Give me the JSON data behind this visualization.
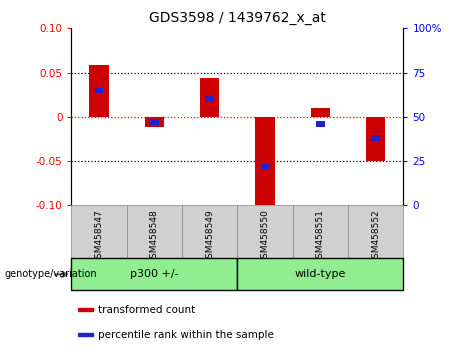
{
  "title": "GDS3598 / 1439762_x_at",
  "samples": [
    "GSM458547",
    "GSM458548",
    "GSM458549",
    "GSM458550",
    "GSM458551",
    "GSM458552"
  ],
  "transformed_count": [
    0.058,
    -0.012,
    0.044,
    -0.1,
    0.01,
    -0.05
  ],
  "percentile_rank": [
    65,
    47,
    60,
    22,
    46,
    38
  ],
  "groups": [
    {
      "label": "p300 +/-",
      "start": 0,
      "end": 3,
      "color": "#90EE90"
    },
    {
      "label": "wild-type",
      "start": 3,
      "end": 6,
      "color": "#90EE90"
    }
  ],
  "ylim_left": [
    -0.1,
    0.1
  ],
  "ylim_right": [
    0,
    100
  ],
  "yticks_left": [
    -0.1,
    -0.05,
    0,
    0.05,
    0.1
  ],
  "yticks_right": [
    0,
    25,
    50,
    75,
    100
  ],
  "bar_color_red": "#CC0000",
  "bar_color_blue": "#2222CC",
  "bar_width": 0.35,
  "blue_bar_height": 0.006,
  "genotype_label": "genotype/variation",
  "legend_items": [
    {
      "color": "#CC0000",
      "label": "transformed count"
    },
    {
      "color": "#2222CC",
      "label": "percentile rank within the sample"
    }
  ],
  "figsize": [
    4.61,
    3.54
  ],
  "dpi": 100
}
